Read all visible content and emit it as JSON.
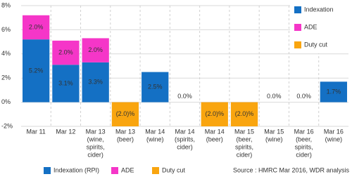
{
  "chart_data": {
    "type": "bar",
    "stacked": true,
    "categories": [
      [
        "Mar 11"
      ],
      [
        "Mar 12"
      ],
      [
        "Mar 13",
        "(wine,",
        "spirits,",
        "cider)"
      ],
      [
        "Mar 13",
        "(beer)"
      ],
      [
        "Mar 14",
        "(wine)"
      ],
      [
        "Mar 14",
        "(spirits,",
        "cider)"
      ],
      [
        "Mar 14",
        "(beer)"
      ],
      [
        "Mar 15",
        "(beer,",
        "spirits,",
        "cider)"
      ],
      [
        "Mar 15",
        "(wine)"
      ],
      [
        "Mar 16",
        "(beer,",
        "spirits,",
        "cider)"
      ],
      [
        "Mar 16",
        "(wine)"
      ]
    ],
    "series": [
      {
        "name": "Indexation (RPI)",
        "color": "#1470c4",
        "values": [
          5.2,
          3.1,
          3.3,
          null,
          2.5,
          0.0,
          null,
          null,
          0.0,
          0.0,
          1.7
        ],
        "value_labels": [
          "5.2%",
          "3.1%",
          "3.3%",
          null,
          "2.5%",
          "0.0%",
          null,
          null,
          "0.0%",
          "0.0%",
          "1.7%"
        ]
      },
      {
        "name": "ADE",
        "color": "#f536c8",
        "values": [
          2.0,
          2.0,
          2.0,
          null,
          null,
          null,
          null,
          null,
          null,
          null,
          null
        ],
        "value_labels": [
          "2.0%",
          "2.0%",
          "2.0%",
          null,
          null,
          null,
          null,
          null,
          null,
          null,
          null
        ]
      },
      {
        "name": "Duty cut",
        "color": "#f9a50f",
        "values": [
          null,
          null,
          null,
          -2.0,
          null,
          null,
          -2.0,
          -2.0,
          null,
          null,
          null
        ],
        "value_labels": [
          null,
          null,
          null,
          "(2.0)%",
          null,
          null,
          "(2.0)%",
          "(2.0)%",
          null,
          null,
          null
        ]
      }
    ],
    "inner_legend": [
      "Indexation",
      "ADE",
      "Duty cut"
    ],
    "ylim": [
      -2,
      8
    ],
    "yticks": [
      {
        "value": -2,
        "label": "-2%"
      },
      {
        "value": 0,
        "label": "0%"
      },
      {
        "value": 2,
        "label": "2%"
      },
      {
        "value": 4,
        "label": "4%"
      },
      {
        "value": 6,
        "label": "6%"
      },
      {
        "value": 8,
        "label": "8%"
      }
    ],
    "grid": true,
    "source": "Source : HMRC Mar 2016, WDR analysis"
  }
}
